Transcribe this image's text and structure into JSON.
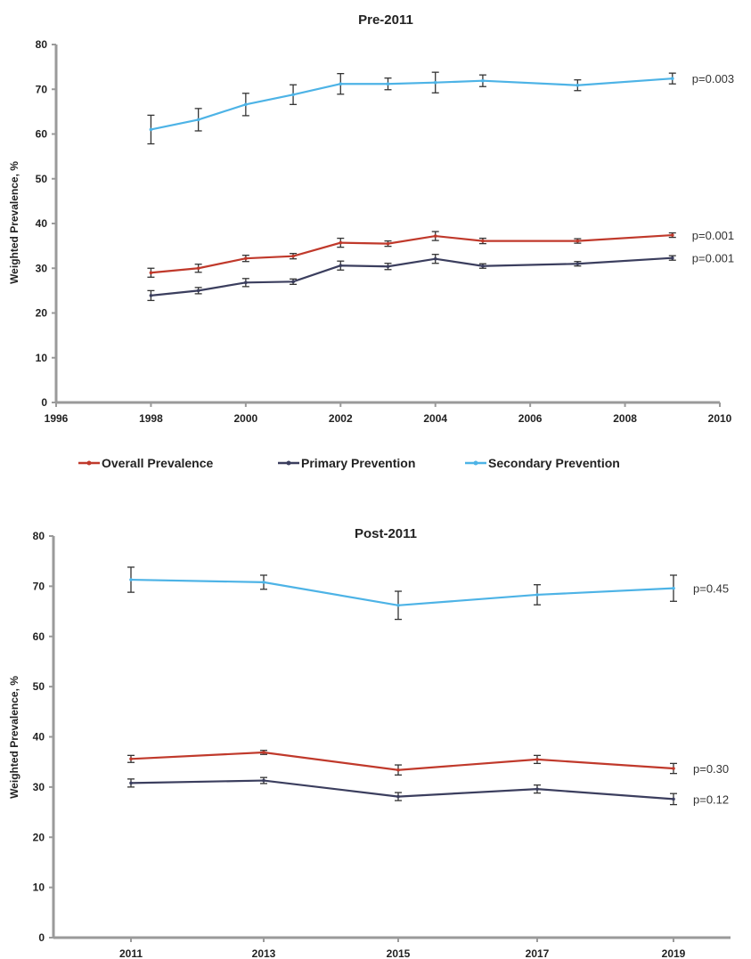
{
  "chart_data": [
    {
      "type": "line",
      "title": "Pre-2011",
      "xlabel": "",
      "ylabel": "Weighted Prevalence, %",
      "xlim": [
        1996,
        2010
      ],
      "ylim": [
        0,
        80
      ],
      "xticks": [
        1996,
        1998,
        2000,
        2002,
        2004,
        2006,
        2008,
        2010
      ],
      "yticks": [
        0,
        10,
        20,
        30,
        40,
        50,
        60,
        70,
        80
      ],
      "x": [
        1998,
        1999,
        2000,
        2001,
        2002,
        2003,
        2004,
        2005,
        2007,
        2009
      ],
      "series": [
        {
          "name": "Overall Prevalence",
          "color": "#c0392b",
          "values": [
            29,
            30,
            32.2,
            32.7,
            35.7,
            35.5,
            37.2,
            36.1,
            36.1,
            37.4
          ],
          "err": [
            1,
            0.9,
            0.7,
            0.6,
            1,
            0.6,
            1,
            0.6,
            0.5,
            0.5
          ],
          "pvalue": "p=0.001"
        },
        {
          "name": "Primary Prevention",
          "color": "#3b3e5e",
          "values": [
            23.9,
            25,
            26.8,
            27,
            30.6,
            30.4,
            32.1,
            30.5,
            31,
            32.3
          ],
          "err": [
            1.1,
            0.7,
            0.9,
            0.6,
            1,
            0.7,
            1,
            0.5,
            0.5,
            0.5
          ],
          "pvalue": "p=0.001"
        },
        {
          "name": "Secondary Prevention",
          "color": "#4db3e6",
          "values": [
            61,
            63.2,
            66.6,
            68.8,
            71.2,
            71.2,
            71.5,
            71.9,
            70.9,
            72.4
          ],
          "err": [
            3.2,
            2.5,
            2.5,
            2.2,
            2.3,
            1.3,
            2.3,
            1.3,
            1.2,
            1.2
          ],
          "pvalue": "p=0.003"
        }
      ],
      "legend": {
        "position": "bottom",
        "entries": [
          "Overall Prevalence",
          "Primary Prevention",
          "Secondary Prevention"
        ]
      }
    },
    {
      "type": "line",
      "title": "Post-2011",
      "xlabel": "",
      "ylabel": "Weighted Prevalence, %",
      "categories": [
        "2011",
        "2013",
        "2015",
        "2017",
        "2019"
      ],
      "ylim": [
        0,
        80
      ],
      "yticks": [
        0,
        10,
        20,
        30,
        40,
        50,
        60,
        70,
        80
      ],
      "series": [
        {
          "name": "Secondary Prevention",
          "color": "#4db3e6",
          "values": [
            71.3,
            70.8,
            66.2,
            68.3,
            69.6
          ],
          "err": [
            2.5,
            1.4,
            2.8,
            2.0,
            2.6
          ],
          "pvalue": "p=0.45"
        },
        {
          "name": "Overall Prevalence",
          "color": "#c0392b",
          "values": [
            35.6,
            36.9,
            33.4,
            35.5,
            33.7
          ],
          "err": [
            0.7,
            0.4,
            1.0,
            0.8,
            1.0
          ],
          "pvalue": "p=0.30"
        },
        {
          "name": "Primary Prevention",
          "color": "#3b3e5e",
          "values": [
            30.8,
            31.3,
            28.1,
            29.6,
            27.6
          ],
          "err": [
            0.8,
            0.6,
            0.8,
            0.8,
            1.1
          ],
          "pvalue": "p=0.12"
        }
      ]
    }
  ]
}
